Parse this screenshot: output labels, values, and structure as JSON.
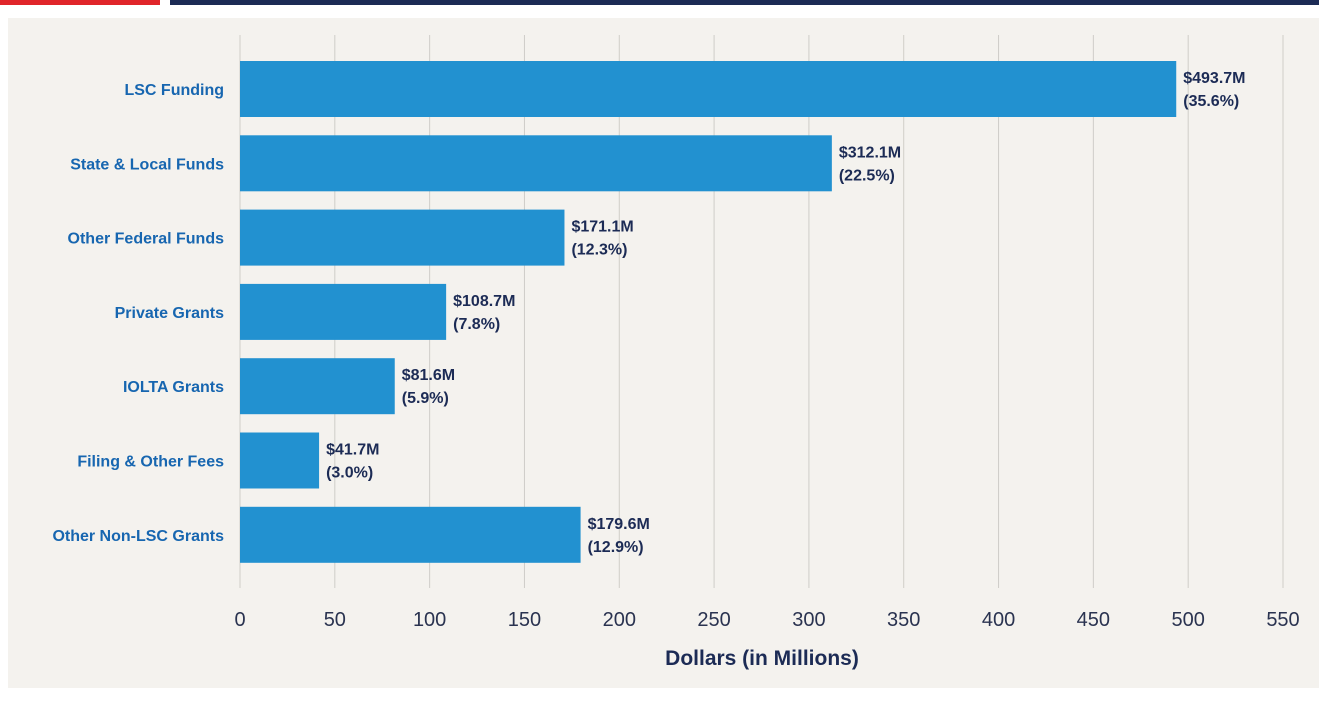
{
  "colors": {
    "accent_red": "#e0252a",
    "rule_navy": "#1c2b55",
    "bar_blue": "#2291d0",
    "category_label_blue": "#1766b0",
    "value_label_navy": "#1c2b55",
    "grid": "#cfcdc8",
    "panel_bg": "#f4f2ee"
  },
  "chart_data": {
    "type": "bar",
    "orientation": "horizontal",
    "title": "",
    "xlabel": "Dollars (in Millions)",
    "ylabel": "",
    "xlim": [
      0,
      550
    ],
    "xticks": [
      0,
      50,
      100,
      150,
      200,
      250,
      300,
      350,
      400,
      450,
      500,
      550
    ],
    "grid": true,
    "categories": [
      "LSC Funding",
      "State & Local Funds",
      "Other Federal Funds",
      "Private Grants",
      "IOLTA Grants",
      "Filing & Other Fees",
      "Other Non-LSC Grants"
    ],
    "values": [
      493.7,
      312.1,
      171.1,
      108.7,
      81.6,
      41.7,
      179.6
    ],
    "value_labels": [
      "$493.7M",
      "$312.1M",
      "$171.1M",
      "$108.7M",
      "$81.6M",
      "$41.7M",
      "$179.6M"
    ],
    "percent_labels": [
      "(35.6%)",
      "(22.5%)",
      "(12.3%)",
      "(7.8%)",
      "(5.9%)",
      "(3.0%)",
      "(12.9%)"
    ]
  }
}
